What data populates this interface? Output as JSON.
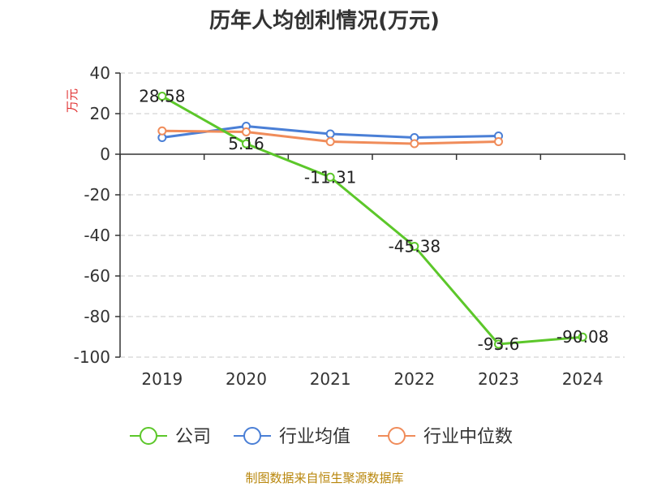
{
  "chart_data": {
    "type": "line",
    "title": "历年人均创利情况(万元)",
    "ylabel": "万元",
    "xlabel": "",
    "categories": [
      "2019",
      "2020",
      "2021",
      "2022",
      "2023",
      "2024"
    ],
    "ylim": [
      -100,
      40
    ],
    "yticks": [
      40,
      20,
      0,
      -20,
      -40,
      -60,
      -80,
      -100
    ],
    "grid": true,
    "legend_position": "bottom",
    "series": [
      {
        "name": "公司",
        "color": "#5cc72a",
        "values": [
          28.58,
          5.16,
          -11.31,
          -45.38,
          -93.6,
          -90.08
        ],
        "labels": [
          "28.58",
          "5.16",
          "-11.31",
          "-45.38",
          "-93.6",
          "-90.08"
        ]
      },
      {
        "name": "行业均值",
        "color": "#4a7fd6",
        "values": [
          8.2,
          13.8,
          10,
          8.2,
          9,
          null
        ]
      },
      {
        "name": "行业中位数",
        "color": "#f08c5a",
        "values": [
          11.5,
          11,
          6.2,
          5.2,
          6.2,
          null
        ]
      }
    ],
    "source": "制图数据来自恒生聚源数据库"
  }
}
